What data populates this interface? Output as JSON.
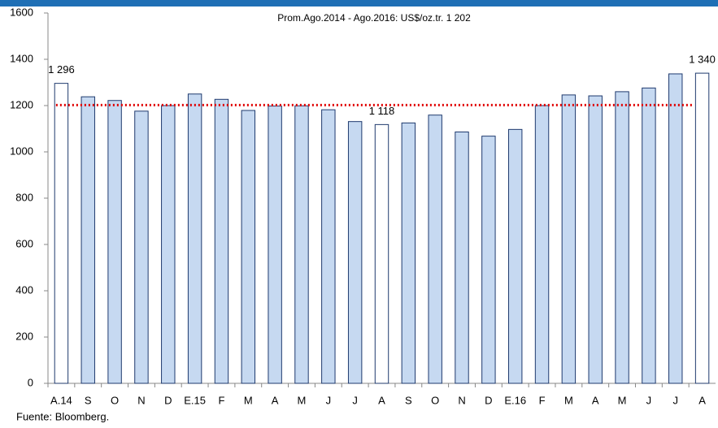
{
  "chart_data": {
    "type": "bar",
    "categories": [
      "A.14",
      "S",
      "O",
      "N",
      "D",
      "E.15",
      "F",
      "M",
      "A",
      "M",
      "J",
      "J",
      "A",
      "S",
      "O",
      "N",
      "D",
      "E.16",
      "F",
      "M",
      "A",
      "M",
      "J",
      "J",
      "A"
    ],
    "values": [
      1296,
      1238,
      1222,
      1176,
      1200,
      1250,
      1227,
      1179,
      1198,
      1199,
      1182,
      1131,
      1118,
      1125,
      1159,
      1086,
      1068,
      1097,
      1200,
      1246,
      1242,
      1260,
      1276,
      1337,
      1340
    ],
    "value_labels": [
      "1 296",
      null,
      null,
      null,
      null,
      null,
      null,
      null,
      null,
      null,
      null,
      null,
      "1 118",
      null,
      null,
      null,
      null,
      null,
      null,
      null,
      null,
      null,
      null,
      null,
      "1 340"
    ],
    "colors": [
      "#ffffff",
      "#c6d9f1",
      "#c6d9f1",
      "#c6d9f1",
      "#c6d9f1",
      "#c6d9f1",
      "#c6d9f1",
      "#c6d9f1",
      "#c6d9f1",
      "#c6d9f1",
      "#c6d9f1",
      "#c6d9f1",
      "#ffffff",
      "#c6d9f1",
      "#c6d9f1",
      "#c6d9f1",
      "#c6d9f1",
      "#c6d9f1",
      "#c6d9f1",
      "#c6d9f1",
      "#c6d9f1",
      "#c6d9f1",
      "#c6d9f1",
      "#c6d9f1",
      "#ffffff"
    ],
    "reference_line": {
      "value": 1202,
      "label": "Prom.Ago.2014 - Ago.2016: US$/oz.tr. 1 202",
      "color": "#e00000"
    },
    "ylim": [
      0,
      1600
    ],
    "yticks": [
      0,
      200,
      400,
      600,
      800,
      1000,
      1200,
      1400,
      1600
    ],
    "grid": false,
    "source": "Fuente: Bloomberg."
  }
}
